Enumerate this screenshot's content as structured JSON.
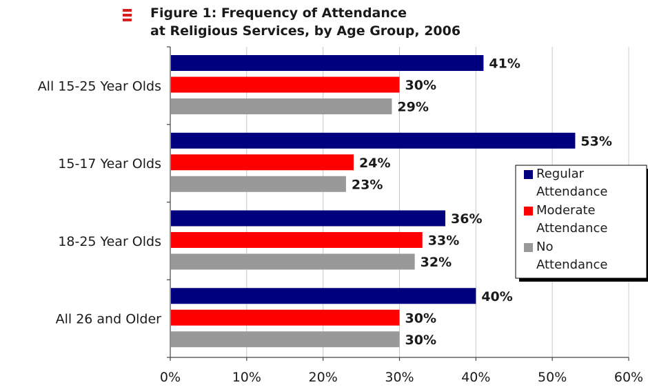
{
  "chart_data": {
    "type": "bar",
    "orientation": "horizontal",
    "title_lines": [
      "Figure 1: Frequency of Attendance",
      "at Religious Services, by Age Group, 2006"
    ],
    "categories": [
      "All 15-25 Year Olds",
      "15-17 Year Olds",
      "18-25 Year Olds",
      "All 26 and Older"
    ],
    "series": [
      {
        "name": "Regular Attendance",
        "legend_lines": [
          "Regular",
          "Attendance"
        ],
        "color": "#00007f",
        "values": [
          41,
          53,
          36,
          40
        ],
        "labels": [
          "41%",
          "53%",
          "36%",
          "40%"
        ]
      },
      {
        "name": "Moderate Attendance",
        "legend_lines": [
          "Moderate",
          "Attendance"
        ],
        "color": "#ff0000",
        "values": [
          30,
          24,
          33,
          30
        ],
        "labels": [
          "30%",
          "24%",
          "33%",
          "30%"
        ]
      },
      {
        "name": "No Attendance",
        "legend_lines": [
          "No",
          "Attendance"
        ],
        "color": "#999999",
        "values": [
          29,
          23,
          32,
          30
        ],
        "labels": [
          "29%",
          "23%",
          "32%",
          "30%"
        ]
      }
    ],
    "xlim": [
      0,
      60
    ],
    "xticks": [
      0,
      10,
      20,
      30,
      40,
      50,
      60
    ],
    "xtick_labels": [
      "0%",
      "10%",
      "20%",
      "30%",
      "40%",
      "50%",
      "60%"
    ],
    "grid": "vertical",
    "legend_position": "right"
  }
}
